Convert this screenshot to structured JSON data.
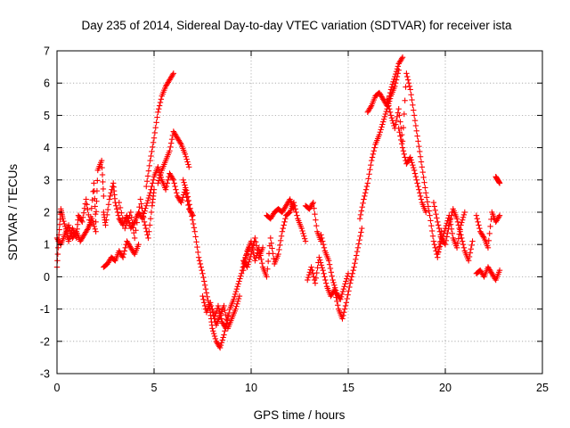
{
  "chart_data": {
    "type": "scatter",
    "title": "Day 235 of 2014, Sidereal Day-to-day VTEC variation (SDTVAR) for receiver ista",
    "xlabel": "GPS time / hours",
    "ylabel": "SDTVAR / TECUs",
    "xlim": [
      0,
      25
    ],
    "ylim": [
      -3,
      7
    ],
    "xticks": [
      0,
      5,
      10,
      15,
      20,
      25
    ],
    "yticks": [
      -3,
      -2,
      -1,
      0,
      1,
      2,
      3,
      4,
      5,
      6,
      7
    ],
    "grid": true,
    "marker": "+",
    "series_color": "#ff0000",
    "series": [
      {
        "name": "SDTVAR",
        "segments": [
          {
            "x": [
              0.0,
              0.1,
              0.2,
              0.3,
              0.5,
              0.6,
              0.8,
              1.0,
              1.1,
              1.3,
              1.5,
              1.7,
              1.9,
              2.0,
              2.1,
              2.3,
              2.4
            ],
            "y": [
              0.3,
              1.3,
              2.1,
              1.8,
              1.4,
              1.1,
              1.5,
              1.2,
              1.9,
              1.7,
              2.4,
              1.6,
              2.9,
              1.7,
              3.3,
              3.6,
              2.5
            ]
          },
          {
            "x": [
              0.0,
              0.2,
              0.4,
              0.6,
              0.8,
              1.0,
              1.2,
              1.4,
              1.6,
              1.8,
              2.0
            ],
            "y": [
              1.2,
              1.0,
              1.3,
              1.6,
              1.2,
              1.4,
              1.1,
              1.3,
              1.5,
              1.8,
              1.4
            ]
          },
          {
            "x": [
              2.4,
              2.5,
              2.7,
              2.9,
              3.0,
              3.2,
              3.4,
              3.6,
              3.8,
              4.0,
              4.2,
              4.4,
              4.6,
              4.8,
              5.0,
              5.2,
              5.4,
              5.6,
              5.8,
              6.0,
              6.2,
              6.4,
              6.6,
              6.8,
              7.0
            ],
            "y": [
              2.0,
              1.6,
              2.4,
              2.9,
              2.3,
              1.8,
              1.6,
              1.9,
              1.5,
              1.7,
              2.0,
              1.8,
              2.2,
              2.6,
              3.1,
              3.4,
              3.0,
              2.7,
              3.2,
              3.0,
              2.5,
              2.3,
              2.7,
              2.1,
              1.9
            ]
          },
          {
            "x": [
              2.4,
              2.6,
              2.8,
              3.0,
              3.2,
              3.4,
              3.6,
              3.8,
              4.0,
              4.2
            ],
            "y": [
              0.3,
              0.4,
              0.6,
              0.5,
              0.8,
              0.6,
              1.1,
              0.9,
              0.7,
              1.0
            ]
          },
          {
            "x": [
              3.2,
              3.5,
              3.8,
              4.0,
              4.3,
              4.5,
              4.7,
              4.9,
              5.0
            ],
            "y": [
              2.3,
              1.5,
              2.0,
              1.2,
              2.4,
              1.7,
              1.2,
              2.2,
              2.7
            ]
          },
          {
            "x": [
              4.6,
              4.8,
              5.0,
              5.2,
              5.4,
              5.6,
              5.8,
              6.0
            ],
            "y": [
              2.8,
              3.6,
              4.3,
              5.1,
              5.6,
              5.9,
              6.1,
              6.3
            ]
          },
          {
            "x": [
              5.2,
              5.4,
              5.6,
              5.8,
              6.0,
              6.2,
              6.4,
              6.6,
              6.8
            ],
            "y": [
              2.9,
              3.3,
              3.6,
              3.9,
              4.5,
              4.3,
              4.1,
              3.8,
              3.4
            ]
          },
          {
            "x": [
              6.5,
              6.7,
              6.9,
              7.1,
              7.3,
              7.5,
              7.7,
              7.9,
              8.0,
              8.2,
              8.4,
              8.6,
              8.8
            ],
            "y": [
              3.0,
              2.6,
              2.0,
              1.4,
              0.6,
              0.1,
              -0.5,
              -1.1,
              -1.6,
              -2.0,
              -2.2,
              -1.8,
              -1.2
            ]
          },
          {
            "x": [
              7.5,
              7.7,
              7.9,
              8.1,
              8.3,
              8.5,
              8.7,
              8.9,
              9.1,
              9.3,
              9.5,
              9.7,
              9.9
            ],
            "y": [
              -0.6,
              -1.1,
              -0.8,
              -1.3,
              -0.9,
              -1.4,
              -1.6,
              -1.0,
              -0.7,
              -0.3,
              0.1,
              0.6,
              0.9
            ]
          },
          {
            "x": [
              8.0,
              8.2,
              8.4,
              8.6,
              8.8,
              9.0,
              9.2,
              9.4
            ],
            "y": [
              -1.0,
              -1.5,
              -1.2,
              -0.9,
              -1.6,
              -1.3,
              -1.0,
              -0.6
            ]
          },
          {
            "x": [
              9.6,
              9.8,
              10.0,
              10.2,
              10.4,
              10.6,
              10.8,
              11.0,
              11.2,
              11.4,
              11.6,
              11.8,
              12.0,
              12.2,
              12.4,
              12.6,
              12.8
            ],
            "y": [
              0.2,
              0.8,
              1.1,
              0.5,
              0.9,
              0.3,
              0.0,
              1.2,
              0.4,
              0.7,
              1.4,
              1.9,
              2.0,
              2.3,
              1.8,
              1.5,
              1.1
            ]
          },
          {
            "x": [
              9.6,
              9.8,
              10.0,
              10.2,
              10.4,
              10.6
            ],
            "y": [
              0.5,
              0.3,
              0.7,
              1.2,
              0.6,
              0.9
            ]
          },
          {
            "x": [
              10.8,
              11.0,
              11.2,
              11.4,
              11.6,
              11.8,
              12.0,
              12.2
            ],
            "y": [
              1.9,
              1.8,
              2.0,
              2.1,
              2.0,
              2.2,
              2.4,
              2.1
            ]
          },
          {
            "x": [
              12.8,
              13.0,
              13.2,
              13.4,
              13.6
            ],
            "y": [
              2.2,
              2.1,
              2.3,
              1.4,
              1.1
            ]
          },
          {
            "x": [
              12.9,
              13.1,
              13.3,
              13.5,
              13.7,
              13.9,
              14.1,
              14.3,
              14.5,
              14.7,
              14.9,
              15.1,
              15.3,
              15.5,
              15.7
            ],
            "y": [
              -0.1,
              0.3,
              -0.2,
              0.6,
              0.2,
              -0.3,
              -0.6,
              -0.4,
              -1.0,
              -1.3,
              -0.8,
              -0.2,
              0.3,
              0.9,
              1.5
            ]
          },
          {
            "x": [
              13.6,
              13.8,
              14.0,
              14.2,
              14.4,
              14.6,
              14.8,
              15.0
            ],
            "y": [
              1.3,
              0.8,
              0.5,
              -0.1,
              -0.5,
              -0.7,
              -0.3,
              0.1
            ]
          },
          {
            "x": [
              15.6,
              15.8,
              16.0,
              16.2,
              16.4,
              16.6,
              16.8,
              17.0,
              17.2,
              17.4,
              17.6
            ],
            "y": [
              1.8,
              2.4,
              2.9,
              3.6,
              4.1,
              4.4,
              4.8,
              5.2,
              5.6,
              5.9,
              6.4
            ]
          },
          {
            "x": [
              16.0,
              16.2,
              16.4,
              16.6,
              16.8,
              17.0,
              17.2,
              17.4,
              17.6,
              17.8
            ],
            "y": [
              5.1,
              5.3,
              5.6,
              5.7,
              5.5,
              5.3,
              5.8,
              6.2,
              6.6,
              6.8
            ]
          },
          {
            "x": [
              17.0,
              17.2,
              17.4,
              17.6,
              17.8,
              18.0,
              18.2,
              18.4,
              18.6,
              18.8,
              19.0,
              19.2,
              19.4,
              19.6,
              19.8
            ],
            "y": [
              5.5,
              5.0,
              4.6,
              5.2,
              4.2,
              6.3,
              5.8,
              5.0,
              4.2,
              3.4,
              2.6,
              1.9,
              1.1,
              0.6,
              1.4
            ]
          },
          {
            "x": [
              17.6,
              17.8,
              18.0,
              18.2,
              18.4,
              18.6,
              18.8,
              19.0
            ],
            "y": [
              4.6,
              4.0,
              3.5,
              3.7,
              3.3,
              2.8,
              2.3,
              2.0
            ]
          },
          {
            "x": [
              19.4,
              19.6,
              19.8,
              20.0,
              20.2,
              20.4,
              20.6,
              20.8,
              21.0,
              21.2,
              21.4
            ],
            "y": [
              2.3,
              1.7,
              1.2,
              1.0,
              1.6,
              2.1,
              1.8,
              1.3,
              0.8,
              0.5,
              1.1
            ]
          },
          {
            "x": [
              19.6,
              19.8,
              20.0,
              20.2,
              20.4,
              20.6,
              20.8,
              21.0
            ],
            "y": [
              0.7,
              1.1,
              1.5,
              1.9,
              1.2,
              0.9,
              1.6,
              2.0
            ]
          },
          {
            "x": [
              21.6,
              21.8,
              22.0,
              22.2,
              22.4,
              22.6,
              22.8
            ],
            "y": [
              1.9,
              1.4,
              1.2,
              0.9,
              2.0,
              1.7,
              1.9
            ]
          },
          {
            "x": [
              21.6,
              21.8,
              22.0,
              22.2,
              22.4,
              22.6,
              22.8
            ],
            "y": [
              0.1,
              0.2,
              0.0,
              0.3,
              0.1,
              -0.1,
              0.2
            ]
          },
          {
            "x": [
              22.6,
              22.7,
              22.8
            ],
            "y": [
              3.1,
              3.0,
              2.9
            ]
          }
        ]
      }
    ]
  }
}
